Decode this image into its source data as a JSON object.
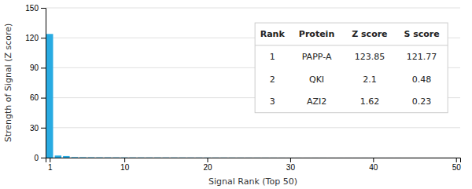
{
  "chart_data": {
    "type": "bar",
    "xlabel": "Signal Rank (Top 50)",
    "ylabel": "Strength of Signal (Z score)",
    "x": [
      1,
      2,
      3,
      4,
      5,
      6,
      7,
      8,
      9,
      10,
      11,
      12,
      13,
      14,
      15,
      16,
      17,
      18,
      19,
      20,
      21,
      22,
      23,
      24,
      25,
      26,
      27,
      28,
      29,
      30,
      31,
      32,
      33,
      34,
      35,
      36,
      37,
      38,
      39,
      40,
      41,
      42,
      43,
      44,
      45,
      46,
      47,
      48,
      49,
      50
    ],
    "values": [
      123.85,
      2.1,
      1.62,
      0.5,
      0.4,
      0.35,
      0.3,
      0.28,
      0.26,
      0.24,
      0.22,
      0.21,
      0.2,
      0.19,
      0.18,
      0.17,
      0.16,
      0.15,
      0.14,
      0.13,
      0.12,
      0.11,
      0.1,
      0.09,
      0.08,
      0.07,
      0.06,
      0.05,
      0.04,
      0.03,
      0.03,
      0.03,
      0.03,
      0.03,
      0.02,
      0.02,
      0.02,
      0.02,
      0.02,
      0.02,
      0.02,
      0.02,
      0.02,
      0.01,
      0.01,
      0.01,
      0.01,
      0.01,
      0.01,
      0.01
    ],
    "color": "#29abe2",
    "xlim": [
      0.5,
      50.5
    ],
    "xticks": [
      1,
      10,
      20,
      30,
      40,
      50
    ],
    "ylim": [
      0,
      150
    ],
    "yticks": [
      0,
      30,
      60,
      90,
      120,
      150
    ],
    "grid": true,
    "table": {
      "headers": [
        "Rank",
        "Protein",
        "Z score",
        "S score"
      ],
      "rows": [
        [
          "1",
          "PAPP-A",
          "123.85",
          "121.77"
        ],
        [
          "2",
          "QKI",
          "2.1",
          "0.48"
        ],
        [
          "3",
          "AZI2",
          "1.62",
          "0.23"
        ]
      ]
    }
  }
}
